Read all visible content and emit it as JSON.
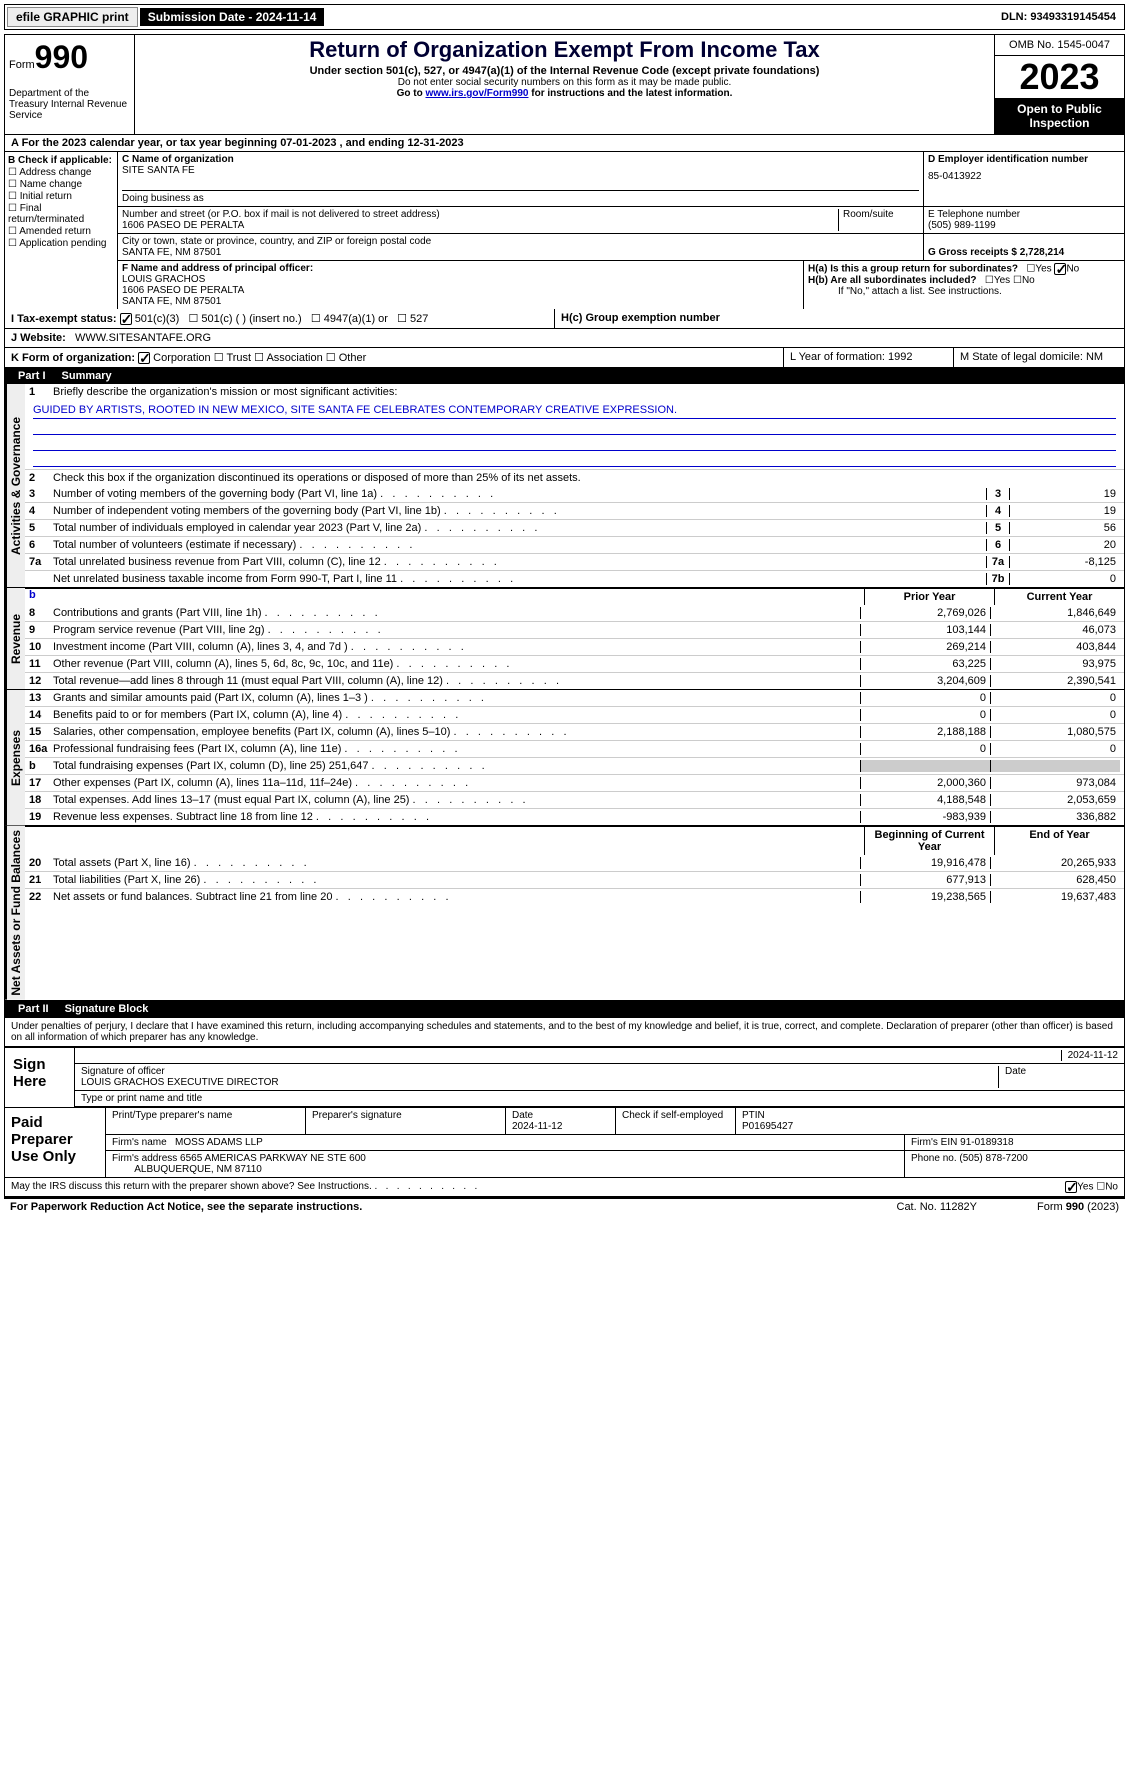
{
  "topbar": {
    "efile_label": "efile GRAPHIC print",
    "submission_label": "Submission Date - 2024-11-14",
    "dln_label": "DLN: 93493319145454"
  },
  "header": {
    "form_label": "Form",
    "form_number": "990",
    "dept": "Department of the Treasury Internal Revenue Service",
    "title": "Return of Organization Exempt From Income Tax",
    "subtitle": "Under section 501(c), 527, or 4947(a)(1) of the Internal Revenue Code (except private foundations)",
    "ssn_note": "Do not enter social security numbers on this form as it may be made public.",
    "goto": "Go to ",
    "goto_link": "www.irs.gov/Form990",
    "goto_suffix": " for instructions and the latest information.",
    "omb": "OMB No. 1545-0047",
    "year": "2023",
    "open": "Open to Public Inspection"
  },
  "row_a": "A For the 2023 calendar year, or tax year beginning 07-01-2023   , and ending 12-31-2023",
  "box_b": {
    "title": "B Check if applicable:",
    "items": [
      "Address change",
      "Name change",
      "Initial return",
      "Final return/terminated",
      "Amended return",
      "Application pending"
    ]
  },
  "box_c": {
    "name_label": "C Name of organization",
    "name": "SITE SANTA FE",
    "dba_label": "Doing business as",
    "dba": "",
    "street_label": "Number and street (or P.O. box if mail is not delivered to street address)",
    "street": "1606 PASEO DE PERALTA",
    "room_label": "Room/suite",
    "city_label": "City or town, state or province, country, and ZIP or foreign postal code",
    "city": "SANTA FE, NM  87501"
  },
  "box_d": {
    "label": "D Employer identification number",
    "value": "85-0413922"
  },
  "box_e": {
    "label": "E Telephone number",
    "value": "(505) 989-1199"
  },
  "box_g": {
    "label": "G Gross receipts $ 2,728,214"
  },
  "box_f": {
    "label": "F  Name and address of principal officer:",
    "name": "LOUIS GRACHOS",
    "addr1": "1606 PASEO DE PERALTA",
    "addr2": "SANTA FE, NM  87501"
  },
  "box_h": {
    "ha": "H(a)  Is this a group return for subordinates?",
    "hb": "H(b)  Are all subordinates included?",
    "hb_note": "If \"No,\" attach a list. See instructions.",
    "hc": "H(c)  Group exemption number",
    "yes": "Yes",
    "no": "No"
  },
  "tax_status": {
    "label": "I   Tax-exempt status:",
    "o1": "501(c)(3)",
    "o2": "501(c) (  ) (insert no.)",
    "o3": "4947(a)(1) or",
    "o4": "527"
  },
  "website": {
    "label": "J   Website:",
    "value": "WWW.SITESANTAFE.ORG"
  },
  "box_k": {
    "label": "K Form of organization:",
    "o1": "Corporation",
    "o2": "Trust",
    "o3": "Association",
    "o4": "Other"
  },
  "box_l": "L Year of formation: 1992",
  "box_m": "M State of legal domicile: NM",
  "part1": {
    "num": "Part I",
    "title": "Summary",
    "line1_label": "Briefly describe the organization's mission or most significant activities:",
    "mission": "GUIDED BY ARTISTS, ROOTED IN NEW MEXICO, SITE SANTA FE CELEBRATES CONTEMPORARY CREATIVE EXPRESSION.",
    "line2": "Check this box      if the organization discontinued its operations or disposed of more than 25% of its net assets.",
    "governance_side": "Activities & Governance",
    "revenue_side": "Revenue",
    "expenses_side": "Expenses",
    "netassets_side": "Net Assets or Fund Balances",
    "rows_gov": [
      {
        "n": "3",
        "t": "Number of voting members of the governing body (Part VI, line 1a)",
        "b": "3",
        "v": "19"
      },
      {
        "n": "4",
        "t": "Number of independent voting members of the governing body (Part VI, line 1b)",
        "b": "4",
        "v": "19"
      },
      {
        "n": "5",
        "t": "Total number of individuals employed in calendar year 2023 (Part V, line 2a)",
        "b": "5",
        "v": "56"
      },
      {
        "n": "6",
        "t": "Total number of volunteers (estimate if necessary)",
        "b": "6",
        "v": "20"
      },
      {
        "n": "7a",
        "t": "Total unrelated business revenue from Part VIII, column (C), line 12",
        "b": "7a",
        "v": "-8,125"
      },
      {
        "n": "",
        "t": "Net unrelated business taxable income from Form 990-T, Part I, line 11",
        "b": "7b",
        "v": "0"
      }
    ],
    "prior_year": "Prior Year",
    "current_year": "Current Year",
    "rows_rev": [
      {
        "n": "8",
        "t": "Contributions and grants (Part VIII, line 1h)",
        "py": "2,769,026",
        "cy": "1,846,649"
      },
      {
        "n": "9",
        "t": "Program service revenue (Part VIII, line 2g)",
        "py": "103,144",
        "cy": "46,073"
      },
      {
        "n": "10",
        "t": "Investment income (Part VIII, column (A), lines 3, 4, and 7d )",
        "py": "269,214",
        "cy": "403,844"
      },
      {
        "n": "11",
        "t": "Other revenue (Part VIII, column (A), lines 5, 6d, 8c, 9c, 10c, and 11e)",
        "py": "63,225",
        "cy": "93,975"
      },
      {
        "n": "12",
        "t": "Total revenue—add lines 8 through 11 (must equal Part VIII, column (A), line 12)",
        "py": "3,204,609",
        "cy": "2,390,541"
      }
    ],
    "rows_exp": [
      {
        "n": "13",
        "t": "Grants and similar amounts paid (Part IX, column (A), lines 1–3 )",
        "py": "0",
        "cy": "0"
      },
      {
        "n": "14",
        "t": "Benefits paid to or for members (Part IX, column (A), line 4)",
        "py": "0",
        "cy": "0"
      },
      {
        "n": "15",
        "t": "Salaries, other compensation, employee benefits (Part IX, column (A), lines 5–10)",
        "py": "2,188,188",
        "cy": "1,080,575"
      },
      {
        "n": "16a",
        "t": "Professional fundraising fees (Part IX, column (A), line 11e)",
        "py": "0",
        "cy": "0"
      },
      {
        "n": "b",
        "t": "Total fundraising expenses (Part IX, column (D), line 25) 251,647",
        "py": "",
        "cy": "",
        "grey": true
      },
      {
        "n": "17",
        "t": "Other expenses (Part IX, column (A), lines 11a–11d, 11f–24e)",
        "py": "2,000,360",
        "cy": "973,084"
      },
      {
        "n": "18",
        "t": "Total expenses. Add lines 13–17 (must equal Part IX, column (A), line 25)",
        "py": "4,188,548",
        "cy": "2,053,659"
      },
      {
        "n": "19",
        "t": "Revenue less expenses. Subtract line 18 from line 12",
        "py": "-983,939",
        "cy": "336,882"
      }
    ],
    "boy": "Beginning of Current Year",
    "eoy": "End of Year",
    "rows_net": [
      {
        "n": "20",
        "t": "Total assets (Part X, line 16)",
        "py": "19,916,478",
        "cy": "20,265,933"
      },
      {
        "n": "21",
        "t": "Total liabilities (Part X, line 26)",
        "py": "677,913",
        "cy": "628,450"
      },
      {
        "n": "22",
        "t": "Net assets or fund balances. Subtract line 21 from line 20",
        "py": "19,238,565",
        "cy": "19,637,483"
      }
    ]
  },
  "part2": {
    "num": "Part II",
    "title": "Signature Block",
    "intro": "Under penalties of perjury, I declare that I have examined this return, including accompanying schedules and statements, and to the best of my knowledge and belief, it is true, correct, and complete. Declaration of preparer (other than officer) is based on all information of which preparer has any knowledge.",
    "sign_here": "Sign Here",
    "sig_date": "2024-11-12",
    "sig_officer_label": "Signature of officer",
    "sig_officer": "LOUIS GRACHOS  EXECUTIVE DIRECTOR",
    "sig_name_label": "Type or print name and title",
    "date_label": "Date",
    "paid_label": "Paid Preparer Use Only",
    "prep_name_label": "Print/Type preparer's name",
    "prep_sig_label": "Preparer's signature",
    "prep_date": "2024-11-12",
    "prep_check": "Check       if self-employed",
    "ptin_label": "PTIN",
    "ptin": "P01695427",
    "firm_name_label": "Firm's name",
    "firm_name": "MOSS ADAMS LLP",
    "firm_ein_label": "Firm's EIN",
    "firm_ein": "91-0189318",
    "firm_addr_label": "Firm's address",
    "firm_addr1": "6565 AMERICAS PARKWAY NE STE 600",
    "firm_addr2": "ALBUQUERQUE, NM  87110",
    "phone_label": "Phone no.",
    "phone": "(505) 878-7200",
    "discuss": "May the IRS discuss this return with the preparer shown above? See Instructions."
  },
  "footer": {
    "paperwork": "For Paperwork Reduction Act Notice, see the separate instructions.",
    "cat": "Cat. No. 11282Y",
    "form": "Form 990 (2023)"
  }
}
